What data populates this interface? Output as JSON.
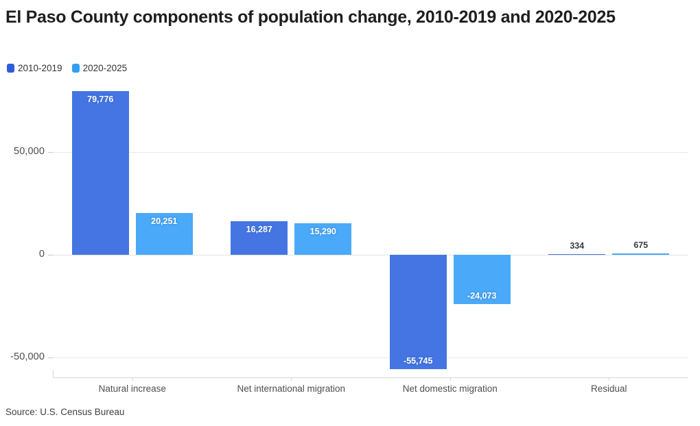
{
  "header": {
    "title": "El Paso County components of population change, 2010-2019 and 2020-2025"
  },
  "legend": {
    "items": [
      {
        "label": "2010-2019",
        "color": "#2e5ed9"
      },
      {
        "label": "2020-2025",
        "color": "#339ff4"
      }
    ]
  },
  "chart_data": {
    "type": "bar",
    "title": "El Paso County components of population change, 2010-2019 and 2020-2025",
    "categories": [
      "Natural increase",
      "Net international migration",
      "Net domestic migration",
      "Residual"
    ],
    "series": [
      {
        "name": "2010-2019",
        "color": "#4475e2",
        "values": [
          79776,
          16287,
          -55745,
          334
        ],
        "labels": [
          "79,776",
          "16,287",
          "-55,745",
          "334"
        ]
      },
      {
        "name": "2020-2025",
        "color": "#4aa9f8",
        "values": [
          20251,
          15290,
          -24073,
          675
        ],
        "labels": [
          "20,251",
          "15,290",
          "-24,073",
          "675"
        ]
      }
    ],
    "yticks": [
      {
        "value": 50000,
        "label": "50,000"
      },
      {
        "value": 0,
        "label": "0"
      },
      {
        "value": -50000,
        "label": "-50,000"
      }
    ],
    "ylim": [
      -58000,
      82000
    ],
    "xlabel": "",
    "ylabel": "",
    "grid": true,
    "legend_position": "top-left"
  },
  "footer": {
    "source": "Source: U.S. Census Bureau"
  }
}
